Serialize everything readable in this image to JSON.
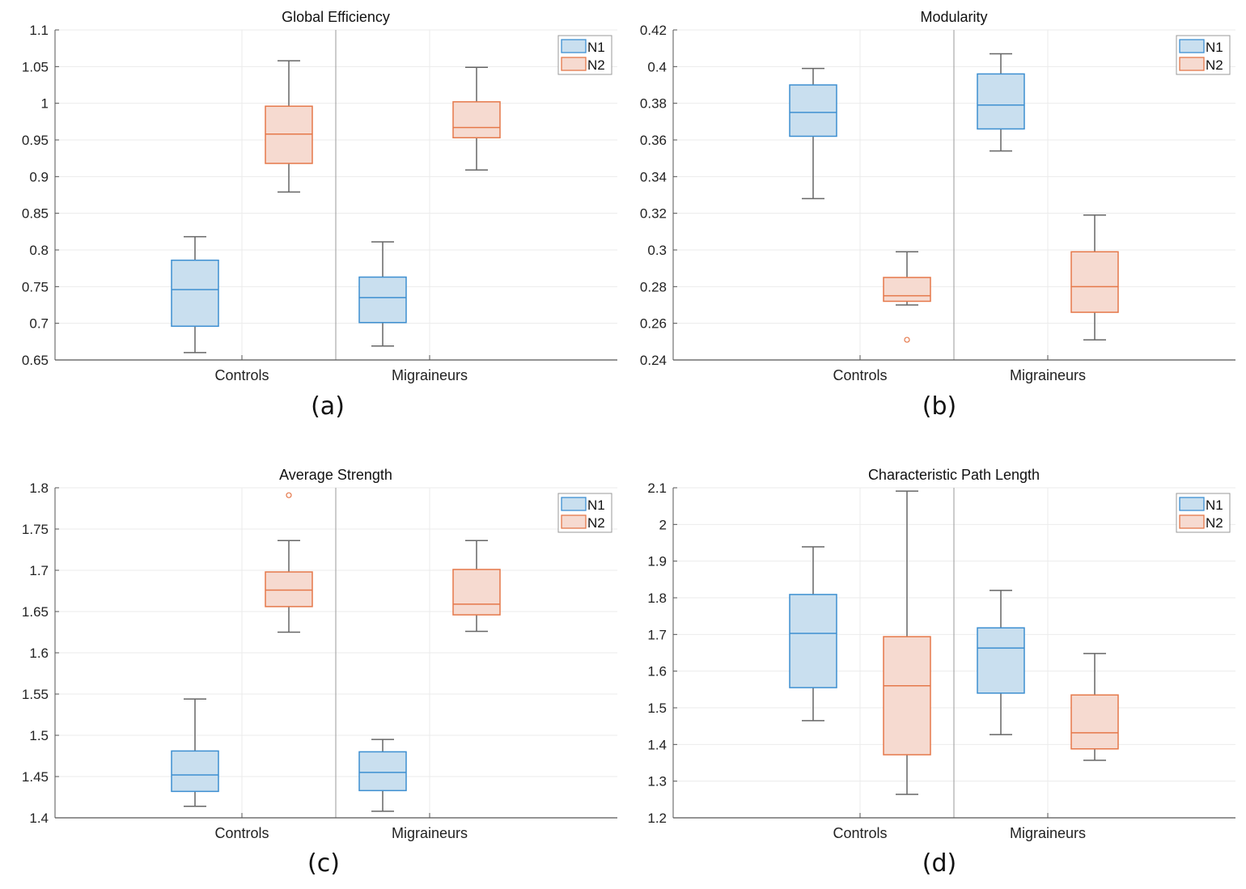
{
  "legend": {
    "items": [
      {
        "label": "N1",
        "stroke": "#3d8fd1",
        "fill": "#c9dfef"
      },
      {
        "label": "N2",
        "stroke": "#e5784a",
        "fill": "#f6dad0"
      }
    ]
  },
  "colors": {
    "axis": "#555555",
    "grid": "#ebebeb",
    "whisker": "#666666",
    "separator": "#9a9a9a"
  },
  "chart_data": [
    {
      "type": "box",
      "panel_label": "(a)",
      "title": "Global Efficiency",
      "xlabel": "",
      "ylabel": "",
      "ylim": [
        0.65,
        1.1
      ],
      "yticks": [
        0.65,
        0.7,
        0.75,
        0.8,
        0.85,
        0.9,
        0.95,
        1,
        1.05,
        1.1
      ],
      "ytick_labels": [
        "0.65",
        "0.7",
        "0.75",
        "0.8",
        "0.85",
        "0.9",
        "0.95",
        "1",
        "1.05",
        "1.1"
      ],
      "categories": [
        "Controls",
        "Migraineurs"
      ],
      "grid": true,
      "legend_position": "top-right",
      "series": [
        {
          "name": "N1",
          "boxes": [
            {
              "whisker_low": 0.66,
              "q1": 0.696,
              "median": 0.746,
              "q3": 0.786,
              "whisker_high": 0.818,
              "outliers": []
            },
            {
              "whisker_low": 0.669,
              "q1": 0.701,
              "median": 0.735,
              "q3": 0.763,
              "whisker_high": 0.811,
              "outliers": []
            }
          ]
        },
        {
          "name": "N2",
          "boxes": [
            {
              "whisker_low": 0.879,
              "q1": 0.918,
              "median": 0.958,
              "q3": 0.996,
              "whisker_high": 1.058,
              "outliers": []
            },
            {
              "whisker_low": 0.909,
              "q1": 0.953,
              "median": 0.967,
              "q3": 1.002,
              "whisker_high": 1.049,
              "outliers": []
            }
          ]
        }
      ]
    },
    {
      "type": "box",
      "panel_label": "(b)",
      "title": "Modularity",
      "xlabel": "",
      "ylabel": "",
      "ylim": [
        0.24,
        0.42
      ],
      "yticks": [
        0.24,
        0.26,
        0.28,
        0.3,
        0.32,
        0.34,
        0.36,
        0.38,
        0.4,
        0.42
      ],
      "ytick_labels": [
        "0.24",
        "0.26",
        "0.28",
        "0.3",
        "0.32",
        "0.34",
        "0.36",
        "0.38",
        "0.4",
        "0.42"
      ],
      "categories": [
        "Controls",
        "Migraineurs"
      ],
      "grid": true,
      "legend_position": "top-right",
      "series": [
        {
          "name": "N1",
          "boxes": [
            {
              "whisker_low": 0.328,
              "q1": 0.362,
              "median": 0.375,
              "q3": 0.39,
              "whisker_high": 0.399,
              "outliers": []
            },
            {
              "whisker_low": 0.354,
              "q1": 0.366,
              "median": 0.379,
              "q3": 0.396,
              "whisker_high": 0.407,
              "outliers": []
            }
          ]
        },
        {
          "name": "N2",
          "boxes": [
            {
              "whisker_low": 0.27,
              "q1": 0.272,
              "median": 0.275,
              "q3": 0.285,
              "whisker_high": 0.299,
              "outliers": [
                0.251
              ]
            },
            {
              "whisker_low": 0.251,
              "q1": 0.266,
              "median": 0.28,
              "q3": 0.299,
              "whisker_high": 0.319,
              "outliers": []
            }
          ]
        }
      ]
    },
    {
      "type": "box",
      "panel_label": "(c)",
      "title": "Average Strength",
      "xlabel": "",
      "ylabel": "",
      "ylim": [
        1.4,
        1.8
      ],
      "yticks": [
        1.4,
        1.45,
        1.5,
        1.55,
        1.6,
        1.65,
        1.7,
        1.75,
        1.8
      ],
      "ytick_labels": [
        "1.4",
        "1.45",
        "1.5",
        "1.55",
        "1.6",
        "1.65",
        "1.7",
        "1.75",
        "1.8"
      ],
      "categories": [
        "Controls",
        "Migraineurs"
      ],
      "grid": true,
      "legend_position": "top-right",
      "series": [
        {
          "name": "N1",
          "boxes": [
            {
              "whisker_low": 1.414,
              "q1": 1.432,
              "median": 1.452,
              "q3": 1.481,
              "whisker_high": 1.544,
              "outliers": []
            },
            {
              "whisker_low": 1.408,
              "q1": 1.433,
              "median": 1.455,
              "q3": 1.48,
              "whisker_high": 1.495,
              "outliers": []
            }
          ]
        },
        {
          "name": "N2",
          "boxes": [
            {
              "whisker_low": 1.625,
              "q1": 1.656,
              "median": 1.676,
              "q3": 1.698,
              "whisker_high": 1.736,
              "outliers": [
                1.791
              ]
            },
            {
              "whisker_low": 1.626,
              "q1": 1.646,
              "median": 1.659,
              "q3": 1.701,
              "whisker_high": 1.736,
              "outliers": []
            }
          ]
        }
      ]
    },
    {
      "type": "box",
      "panel_label": "(d)",
      "title": "Characteristic Path Length",
      "xlabel": "",
      "ylabel": "",
      "ylim": [
        1.2,
        2.1
      ],
      "yticks": [
        1.2,
        1.3,
        1.4,
        1.5,
        1.6,
        1.7,
        1.8,
        1.9,
        2,
        2.1
      ],
      "ytick_labels": [
        "1.2",
        "1.3",
        "1.4",
        "1.5",
        "1.6",
        "1.7",
        "1.8",
        "1.9",
        "2",
        "2.1"
      ],
      "categories": [
        "Controls",
        "Migraineurs"
      ],
      "grid": true,
      "legend_position": "top-right",
      "series": [
        {
          "name": "N1",
          "boxes": [
            {
              "whisker_low": 1.465,
              "q1": 1.555,
              "median": 1.703,
              "q3": 1.809,
              "whisker_high": 1.939,
              "outliers": []
            },
            {
              "whisker_low": 1.427,
              "q1": 1.54,
              "median": 1.663,
              "q3": 1.718,
              "whisker_high": 1.82,
              "outliers": []
            }
          ]
        },
        {
          "name": "N2",
          "boxes": [
            {
              "whisker_low": 1.264,
              "q1": 1.372,
              "median": 1.56,
              "q3": 1.694,
              "whisker_high": 2.091,
              "outliers": []
            },
            {
              "whisker_low": 1.357,
              "q1": 1.388,
              "median": 1.432,
              "q3": 1.535,
              "whisker_high": 1.648,
              "outliers": []
            }
          ]
        }
      ]
    }
  ]
}
